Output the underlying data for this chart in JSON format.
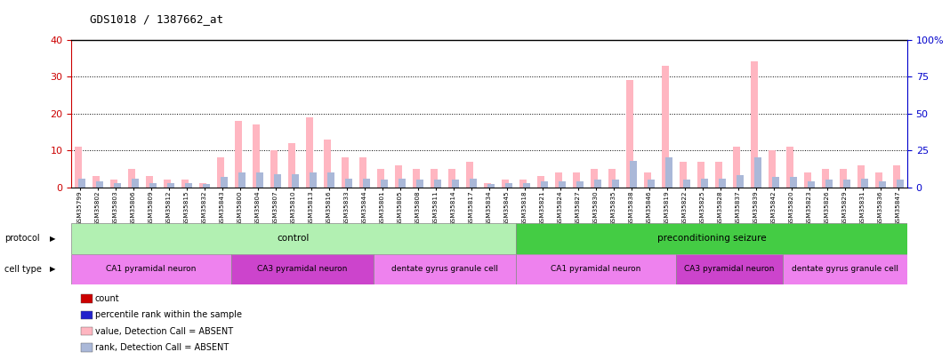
{
  "title": "GDS1018 / 1387662_at",
  "samples": [
    "GSM35799",
    "GSM35802",
    "GSM35803",
    "GSM35806",
    "GSM35809",
    "GSM35812",
    "GSM35815",
    "GSM35832",
    "GSM35843",
    "GSM35800",
    "GSM35804",
    "GSM35807",
    "GSM35810",
    "GSM35813",
    "GSM35816",
    "GSM35833",
    "GSM35844",
    "GSM35801",
    "GSM35805",
    "GSM35808",
    "GSM35811",
    "GSM35814",
    "GSM35817",
    "GSM35834",
    "GSM35845",
    "GSM35818",
    "GSM35821",
    "GSM35824",
    "GSM35827",
    "GSM35830",
    "GSM35835",
    "GSM35838",
    "GSM35846",
    "GSM35819",
    "GSM35822",
    "GSM35825",
    "GSM35828",
    "GSM35837",
    "GSM35839",
    "GSM35842",
    "GSM35820",
    "GSM35823",
    "GSM35826",
    "GSM35829",
    "GSM35831",
    "GSM35836",
    "GSM35847"
  ],
  "value_absent": [
    11,
    3,
    2,
    5,
    3,
    2,
    2,
    1,
    8,
    18,
    17,
    10,
    12,
    19,
    13,
    8,
    8,
    5,
    6,
    5,
    5,
    5,
    7,
    1,
    2,
    2,
    3,
    4,
    4,
    5,
    5,
    29,
    4,
    33,
    7,
    7,
    7,
    11,
    34,
    10,
    11,
    4,
    5,
    5,
    6,
    4,
    6
  ],
  "rank_absent": [
    6,
    4,
    3,
    6,
    3,
    3,
    3,
    2,
    7,
    10,
    10,
    9,
    9,
    10,
    10,
    6,
    6,
    5,
    6,
    5,
    5,
    5,
    6,
    2,
    3,
    3,
    4,
    4,
    4,
    5,
    5,
    18,
    5,
    20,
    5,
    6,
    6,
    8,
    20,
    7,
    7,
    4,
    5,
    5,
    6,
    4,
    5
  ],
  "protocol_groups": [
    {
      "label": "control",
      "start": 0,
      "end": 24,
      "color": "#b2f0b2"
    },
    {
      "label": "preconditioning seizure",
      "start": 25,
      "end": 46,
      "color": "#44cc44"
    }
  ],
  "cell_type_groups": [
    {
      "label": "CA1 pyramidal neuron",
      "start": 0,
      "end": 8,
      "color": "#ee82ee"
    },
    {
      "label": "CA3 pyramidal neuron",
      "start": 9,
      "end": 16,
      "color": "#cc44cc"
    },
    {
      "label": "dentate gyrus granule cell",
      "start": 17,
      "end": 24,
      "color": "#ee82ee"
    },
    {
      "label": "CA1 pyramidal neuron",
      "start": 25,
      "end": 33,
      "color": "#ee82ee"
    },
    {
      "label": "CA3 pyramidal neuron",
      "start": 34,
      "end": 39,
      "color": "#cc44cc"
    },
    {
      "label": "dentate gyrus granule cell",
      "start": 40,
      "end": 46,
      "color": "#ee82ee"
    }
  ],
  "left_ylim": [
    0,
    40
  ],
  "right_ylim": [
    0,
    100
  ],
  "left_yticks": [
    0,
    10,
    20,
    30,
    40
  ],
  "right_yticks": [
    0,
    25,
    50,
    75,
    100
  ],
  "bar_color_absent_value": "#FFB6C1",
  "bar_color_absent_rank": "#aab8d8",
  "marker_color_count": "#cc0000",
  "marker_color_percentile": "#2222cc",
  "legend_items": [
    {
      "label": "count",
      "color": "#cc0000"
    },
    {
      "label": "percentile rank within the sample",
      "color": "#2222cc"
    },
    {
      "label": "value, Detection Call = ABSENT",
      "color": "#FFB6C1"
    },
    {
      "label": "rank, Detection Call = ABSENT",
      "color": "#aab8d8"
    }
  ]
}
